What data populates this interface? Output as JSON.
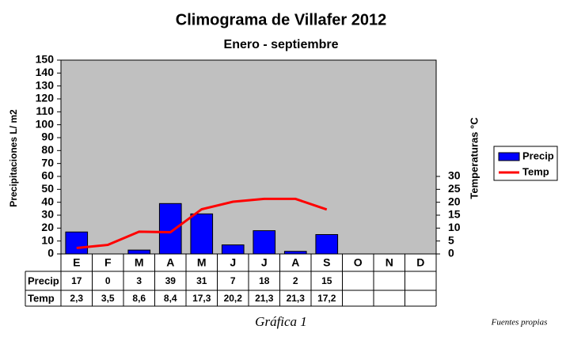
{
  "chart_data": {
    "type": "bar-line",
    "title": "Climograma de Villafer 2012",
    "subtitle": "Enero - septiembre",
    "y_label": "Precipitaciones L/ m2",
    "y2_label": "Temperaturas °C",
    "categories": [
      "E",
      "F",
      "M",
      "A",
      "M",
      "J",
      "J",
      "A",
      "S",
      "O",
      "N",
      "D"
    ],
    "series": [
      {
        "name": "Precip",
        "type": "bar",
        "color": "#0000ff",
        "values": [
          17,
          0,
          3,
          39,
          31,
          7,
          18,
          2,
          15,
          null,
          null,
          null
        ]
      },
      {
        "name": "Temp",
        "type": "line",
        "axis": "y2",
        "color": "#ff0000",
        "values": [
          2.3,
          3.5,
          8.6,
          8.4,
          17.3,
          20.2,
          21.3,
          21.3,
          17.2,
          null,
          null,
          null
        ],
        "value_labels": [
          "2,3",
          "3,5",
          "8,6",
          "8,4",
          "17,3",
          "20,2",
          "21,3",
          "21,3",
          "17,2",
          null,
          null,
          null
        ]
      }
    ],
    "ylim": [
      0,
      150
    ],
    "yticks": [
      0,
      10,
      20,
      30,
      40,
      50,
      60,
      70,
      80,
      90,
      100,
      110,
      120,
      130,
      140,
      150
    ],
    "y2lim": [
      0,
      75
    ],
    "y2ticks": [
      0,
      5,
      10,
      15,
      20,
      25,
      30
    ],
    "grid": false,
    "legend": "right",
    "background": "#c0c0c0",
    "caption": "Gráfica 1",
    "source": "Fuentes propias"
  }
}
